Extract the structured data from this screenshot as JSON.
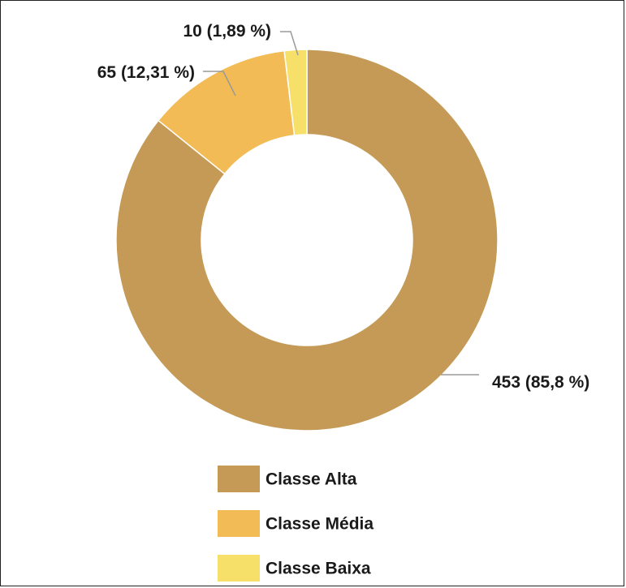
{
  "chart_data": {
    "type": "pie",
    "title": "",
    "donut": true,
    "categories": [
      "Classe Alta",
      "Classe Média",
      "Classe Baixa"
    ],
    "values": [
      453,
      65,
      10
    ],
    "percentages": [
      85.8,
      12.31,
      1.89
    ],
    "data_labels": [
      "453 (85,8 %)",
      "65 (12,31 %)",
      "10 (1,89 %)"
    ],
    "colors": [
      "#c49a56",
      "#f2bb55",
      "#f7e06a"
    ],
    "legend_position": "bottom",
    "legend": [
      {
        "label": "Classe Alta",
        "color": "#c49a56"
      },
      {
        "label": "Classe Média",
        "color": "#f2bb55"
      },
      {
        "label": "Classe Baixa",
        "color": "#f7e06a"
      }
    ]
  }
}
